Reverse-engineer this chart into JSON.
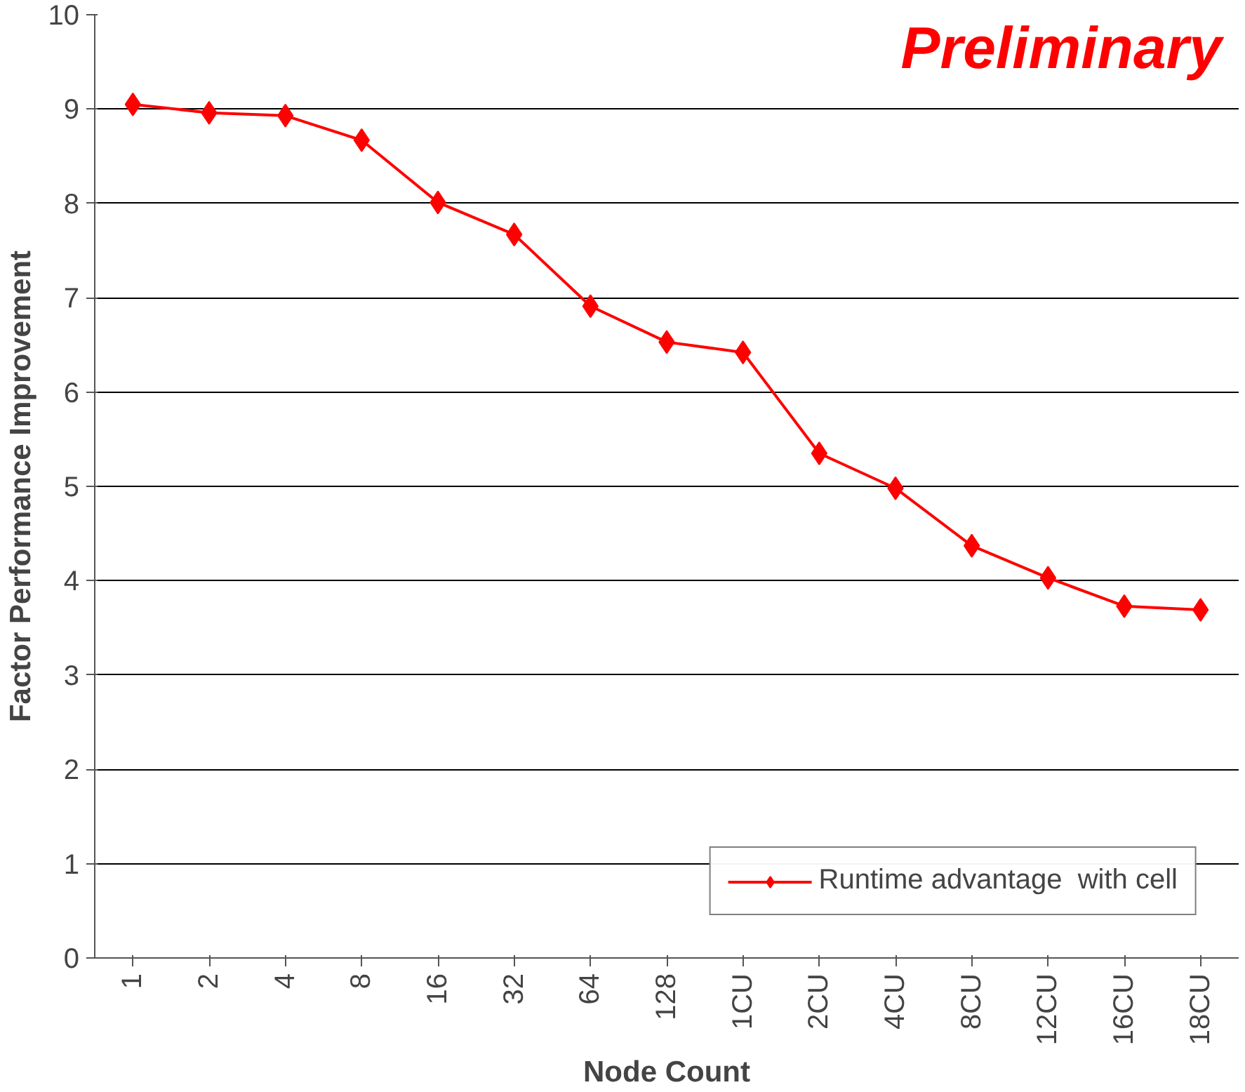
{
  "chart_data": {
    "type": "line",
    "xlabel": "Node Count",
    "ylabel": "Factor Performance Improvement",
    "categories": [
      "1",
      "2",
      "4",
      "8",
      "16",
      "32",
      "64",
      "128",
      "1CU",
      "2CU",
      "4CU",
      "8CU",
      "12CU",
      "16CU",
      "18CU"
    ],
    "series": [
      {
        "name": "Runtime advantage  with cell",
        "color": "#ff0000",
        "values": [
          9.05,
          8.96,
          8.93,
          8.67,
          8.01,
          7.67,
          6.91,
          6.53,
          6.42,
          5.35,
          4.98,
          4.37,
          4.03,
          3.73,
          3.69
        ]
      }
    ],
    "ylim": [
      0,
      10
    ],
    "yticks": [
      0,
      1,
      2,
      3,
      4,
      5,
      6,
      7,
      8,
      9,
      10
    ],
    "grid": "y",
    "legend": "bottom right",
    "marker": "diamond",
    "line_style": "solid",
    "annotations": [
      "Preliminary"
    ]
  }
}
